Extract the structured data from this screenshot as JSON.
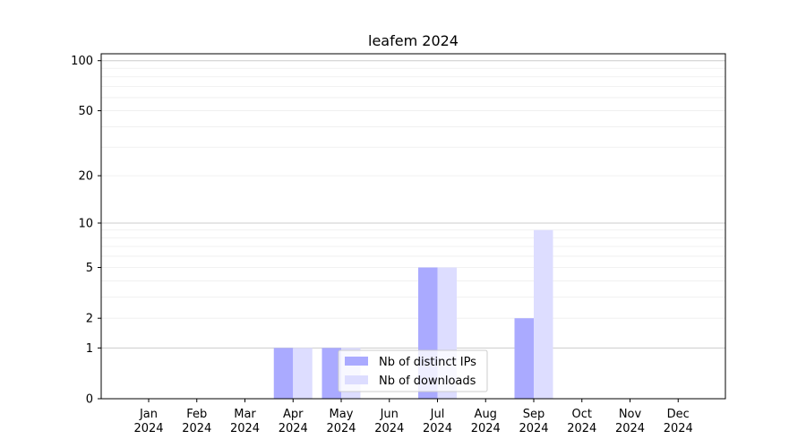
{
  "chart_data": {
    "type": "bar",
    "title": "leafem 2024",
    "xlabel": "",
    "ylabel": "",
    "yscale": "symlog",
    "ylim": [
      0,
      110
    ],
    "yticks": [
      0,
      1,
      2,
      5,
      10,
      20,
      50,
      100
    ],
    "categories": [
      "Jan\n2024",
      "Feb\n2024",
      "Mar\n2024",
      "Apr\n2024",
      "May\n2024",
      "Jun\n2024",
      "Jul\n2024",
      "Aug\n2024",
      "Sep\n2024",
      "Oct\n2024",
      "Nov\n2024",
      "Dec\n2024"
    ],
    "series": [
      {
        "name": "Nb of distinct IPs",
        "color": "#aaaaff",
        "values": [
          0,
          0,
          0,
          1,
          1,
          0,
          5,
          0,
          2,
          0,
          0,
          0
        ]
      },
      {
        "name": "Nb of downloads",
        "color": "#ddddff",
        "values": [
          0,
          0,
          0,
          1,
          1,
          0,
          5,
          0,
          9,
          0,
          0,
          0
        ]
      }
    ],
    "grid": true,
    "legend_position": "bottom-center"
  }
}
